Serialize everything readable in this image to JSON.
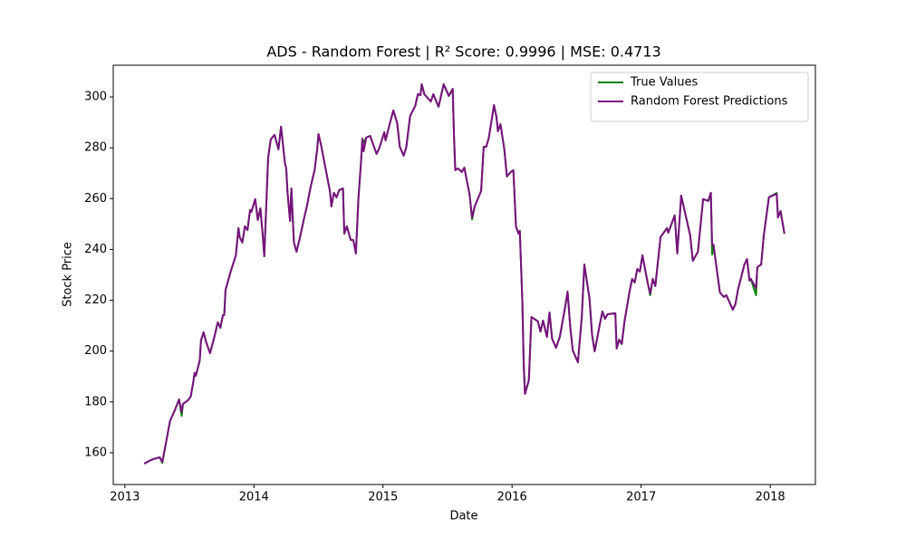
{
  "chart_data": {
    "type": "line",
    "title": "ADS - Random Forest | R² Score: 0.9996 | MSE: 0.4713",
    "xlabel": "Date",
    "ylabel": "Stock Price",
    "x": [
      2013.15,
      2013.19,
      2013.22,
      2013.27,
      2013.29,
      2013.32,
      2013.35,
      2013.39,
      2013.42,
      2013.44,
      2013.45,
      2013.49,
      2013.51,
      2013.53,
      2013.54,
      2013.55,
      2013.58,
      2013.59,
      2013.61,
      2013.63,
      2013.66,
      2013.69,
      2013.72,
      2013.74,
      2013.76,
      2013.77,
      2013.78,
      2013.82,
      2013.86,
      2013.88,
      2013.89,
      2013.91,
      2013.93,
      2013.95,
      2013.97,
      2013.98,
      2014.01,
      2014.03,
      2014.05,
      2014.07,
      2014.08,
      2014.11,
      2014.13,
      2014.16,
      2014.19,
      2014.21,
      2014.24,
      2014.25,
      2014.26,
      2014.28,
      2014.29,
      2014.31,
      2014.33,
      2014.36,
      2014.39,
      2014.41,
      2014.44,
      2014.47,
      2014.49,
      2014.5,
      2014.52,
      2014.56,
      2014.59,
      2014.6,
      2014.62,
      2014.64,
      2014.66,
      2014.69,
      2014.7,
      2014.72,
      2014.75,
      2014.77,
      2014.79,
      2014.81,
      2014.83,
      2014.84,
      2014.85,
      2014.87,
      2014.9,
      2014.95,
      2014.97,
      2015.01,
      2015.02,
      2015.05,
      2015.08,
      2015.11,
      2015.13,
      2015.16,
      2015.18,
      2015.21,
      2015.25,
      2015.27,
      2015.29,
      2015.3,
      2015.32,
      2015.37,
      2015.39,
      2015.43,
      2015.47,
      2015.51,
      2015.54,
      2015.55,
      2015.56,
      2015.58,
      2015.61,
      2015.63,
      2015.65,
      2015.67,
      2015.69,
      2015.71,
      2015.76,
      2015.78,
      2015.8,
      2015.82,
      2015.86,
      2015.88,
      2015.89,
      2015.91,
      2015.94,
      2015.96,
      2015.99,
      2016.01,
      2016.03,
      2016.05,
      2016.06,
      2016.08,
      2016.09,
      2016.1,
      2016.13,
      2016.15,
      2016.2,
      2016.22,
      2016.24,
      2016.27,
      2016.29,
      2016.31,
      2016.34,
      2016.37,
      2016.41,
      2016.43,
      2016.45,
      2016.47,
      2016.51,
      2016.54,
      2016.56,
      2016.6,
      2016.62,
      2016.64,
      2016.68,
      2016.7,
      2016.72,
      2016.74,
      2016.8,
      2016.81,
      2016.83,
      2016.85,
      2016.87,
      2016.91,
      2016.93,
      2016.95,
      2016.97,
      2016.99,
      2017.01,
      2017.05,
      2017.07,
      2017.09,
      2017.11,
      2017.15,
      2017.2,
      2017.21,
      2017.26,
      2017.28,
      2017.31,
      2017.38,
      2017.4,
      2017.44,
      2017.48,
      2017.52,
      2017.54,
      2017.55,
      2017.56,
      2017.61,
      2017.64,
      2017.66,
      2017.71,
      2017.73,
      2017.75,
      2017.8,
      2017.82,
      2017.84,
      2017.85,
      2017.89,
      2017.9,
      2017.93,
      2017.95,
      2017.99,
      2018.05,
      2018.06,
      2018.08,
      2018.11
    ],
    "series": [
      {
        "name": "True Values",
        "color": "#008000",
        "values": [
          155.7,
          156.8,
          157.5,
          158.2,
          156.0,
          164.3,
          172.5,
          177.1,
          181.0,
          174.5,
          179.2,
          180.7,
          182.1,
          187.8,
          191.4,
          190.3,
          196.3,
          204.2,
          207.4,
          203.5,
          199.2,
          204.9,
          211.3,
          209.2,
          214.2,
          214.2,
          224.1,
          231.3,
          237.7,
          248.4,
          244.8,
          242.7,
          249.1,
          247.6,
          255.5,
          254.8,
          259.8,
          251.6,
          256.2,
          244.4,
          237.3,
          276.1,
          283.3,
          285.1,
          279.4,
          288.3,
          274.0,
          271.9,
          262.6,
          251.2,
          264.0,
          242.7,
          239.1,
          245.5,
          252.6,
          256.9,
          264.8,
          271.2,
          279.4,
          285.4,
          281.1,
          270.5,
          262.6,
          256.9,
          262.3,
          260.5,
          263.3,
          264.0,
          246.2,
          249.1,
          243.7,
          243.7,
          238.4,
          260.5,
          274.7,
          283.6,
          282.0,
          284.0,
          284.7,
          277.6,
          279.7,
          286.1,
          282.9,
          289.0,
          294.7,
          289.7,
          280.4,
          276.9,
          280.1,
          292.5,
          296.5,
          301.1,
          300.7,
          305.0,
          301.1,
          298.2,
          301.1,
          296.1,
          305.0,
          300.4,
          303.2,
          284.7,
          271.2,
          271.9,
          270.5,
          272.2,
          266.9,
          261.9,
          251.8,
          256.9,
          263.0,
          280.4,
          280.4,
          284.0,
          296.8,
          291.8,
          286.5,
          289.3,
          279.4,
          268.7,
          270.5,
          271.2,
          249.1,
          246.2,
          247.3,
          218.8,
          194.9,
          183.2,
          188.5,
          213.4,
          211.7,
          207.7,
          212.0,
          205.6,
          215.2,
          204.9,
          201.3,
          205.6,
          217.0,
          223.4,
          209.9,
          200.3,
          195.6,
          213.4,
          234.1,
          220.6,
          206.3,
          199.9,
          210.6,
          215.6,
          212.7,
          214.5,
          214.9,
          201.0,
          204.5,
          202.8,
          211.3,
          223.4,
          228.4,
          227.0,
          232.3,
          231.3,
          237.7,
          227.0,
          222.0,
          228.4,
          225.6,
          244.8,
          248.4,
          246.6,
          253.4,
          238.4,
          261.2,
          245.5,
          235.5,
          239.1,
          259.8,
          259.1,
          262.3,
          238.0,
          241.9,
          223.1,
          221.3,
          222.0,
          216.3,
          218.4,
          224.1,
          234.1,
          236.2,
          227.7,
          228.4,
          222.0,
          233.0,
          234.1,
          245.5,
          260.5,
          262.2,
          252.6,
          255.1,
          246.2
        ]
      },
      {
        "name": "Random Forest Predictions",
        "color": "#7a1080",
        "values": [
          155.7,
          156.8,
          157.5,
          158.2,
          156.4,
          164.3,
          172.5,
          177.1,
          181.0,
          176.0,
          179.2,
          180.7,
          182.1,
          187.8,
          191.4,
          190.3,
          196.3,
          204.2,
          207.4,
          203.5,
          199.2,
          204.9,
          211.3,
          209.2,
          214.2,
          214.2,
          224.1,
          231.3,
          237.7,
          248.4,
          244.8,
          242.7,
          249.1,
          247.6,
          255.5,
          254.8,
          259.8,
          251.6,
          256.2,
          244.4,
          237.3,
          276.1,
          283.3,
          285.1,
          279.4,
          288.3,
          274.0,
          271.9,
          262.6,
          251.2,
          264.0,
          242.7,
          239.1,
          245.5,
          252.6,
          256.9,
          264.8,
          271.2,
          279.4,
          285.4,
          281.1,
          270.5,
          262.6,
          256.9,
          262.3,
          260.5,
          263.3,
          264.0,
          246.2,
          249.1,
          243.7,
          243.7,
          238.4,
          260.5,
          274.7,
          283.6,
          278.6,
          284.0,
          284.7,
          277.6,
          279.7,
          286.1,
          282.9,
          289.0,
          294.7,
          289.7,
          280.4,
          276.9,
          280.1,
          292.5,
          296.5,
          301.1,
          300.7,
          305.0,
          301.1,
          298.2,
          301.1,
          296.1,
          305.0,
          300.4,
          303.2,
          284.7,
          271.2,
          271.9,
          270.5,
          272.2,
          266.9,
          261.9,
          252.6,
          256.9,
          263.0,
          280.4,
          280.4,
          284.0,
          296.8,
          291.8,
          286.5,
          289.3,
          279.4,
          268.7,
          270.5,
          271.2,
          249.1,
          246.2,
          247.3,
          218.8,
          194.9,
          183.2,
          188.5,
          213.4,
          211.7,
          207.7,
          212.0,
          205.6,
          215.2,
          204.9,
          201.3,
          205.6,
          217.0,
          223.4,
          209.9,
          200.3,
          195.6,
          213.4,
          234.1,
          220.6,
          206.3,
          199.9,
          210.6,
          215.6,
          212.7,
          214.5,
          214.9,
          201.0,
          204.5,
          202.8,
          211.3,
          223.4,
          228.4,
          227.0,
          232.3,
          231.3,
          237.7,
          227.0,
          222.7,
          228.4,
          225.6,
          244.8,
          248.4,
          246.6,
          253.4,
          238.4,
          261.2,
          245.5,
          235.5,
          239.1,
          259.8,
          259.1,
          262.3,
          241.9,
          241.9,
          223.1,
          221.3,
          222.0,
          216.3,
          218.4,
          224.1,
          234.1,
          236.2,
          227.7,
          228.4,
          224.8,
          233.0,
          234.1,
          245.5,
          260.5,
          261.9,
          252.6,
          255.1,
          246.2
        ]
      }
    ],
    "xlim": [
      2012.91,
      2018.35
    ],
    "xticks": [
      2013,
      2014,
      2015,
      2016,
      2017,
      2018
    ],
    "ylim": [
      147.5,
      312.5
    ],
    "yticks": [
      160,
      180,
      200,
      220,
      240,
      260,
      280,
      300
    ],
    "legend": "upper right",
    "grid": false
  }
}
